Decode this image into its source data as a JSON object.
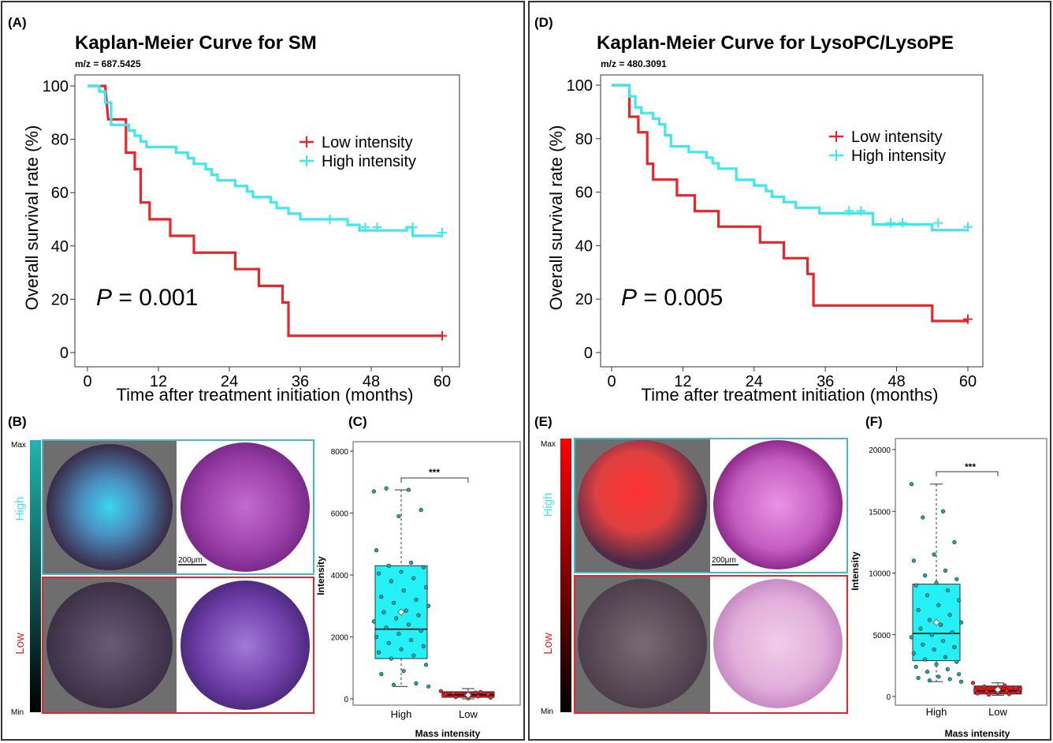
{
  "colors": {
    "low": "#e8262a",
    "high": "#3fe7ef",
    "frame": "#333333",
    "box_high": "#25f0f6",
    "box_low": "#d01818"
  },
  "panels": [
    {
      "id": "A",
      "label": "(A)",
      "title": "Kaplan-Meier Curve for SM",
      "subtitle": "m/z = 687.5425",
      "pvalue_prefix": "P",
      "pvalue_text": " = 0.001",
      "chart_data": {
        "type": "line",
        "title": "Kaplan-Meier Curve for SM",
        "xlabel": "Time after treatment initiation (months)",
        "ylabel": "Overall survival rate (%)",
        "xlim": [
          0,
          60
        ],
        "ylim": [
          0,
          100
        ],
        "xticks": [
          0,
          12,
          24,
          36,
          48,
          60
        ],
        "yticks": [
          0,
          20,
          40,
          60,
          80,
          100
        ],
        "legend_position": "right",
        "series": [
          {
            "name": "Low intensity",
            "color": "low",
            "steps": [
              [
                0,
                100
              ],
              [
                3,
                100
              ],
              [
                3.5,
                87.5
              ],
              [
                6.5,
                87.5
              ],
              [
                6.5,
                75
              ],
              [
                8,
                75
              ],
              [
                8,
                68.8
              ],
              [
                9,
                68.8
              ],
              [
                9,
                56.3
              ],
              [
                10.5,
                56.3
              ],
              [
                10.5,
                50
              ],
              [
                14,
                50
              ],
              [
                14,
                43.8
              ],
              [
                18,
                43.8
              ],
              [
                18,
                37.5
              ],
              [
                25,
                37.5
              ],
              [
                25,
                31.3
              ],
              [
                29,
                31.3
              ],
              [
                29,
                25
              ],
              [
                33,
                25
              ],
              [
                33,
                18.8
              ],
              [
                34,
                18.8
              ],
              [
                34,
                6.3
              ],
              [
                60,
                6.3
              ]
            ],
            "censors": [
              [
                60,
                6.3
              ]
            ]
          },
          {
            "name": "High intensity",
            "color": "high",
            "steps": [
              [
                0,
                100
              ],
              [
                2,
                100
              ],
              [
                2,
                97.9
              ],
              [
                3,
                97.9
              ],
              [
                3,
                93.8
              ],
              [
                4,
                93.8
              ],
              [
                4,
                85.4
              ],
              [
                7,
                85.4
              ],
              [
                7,
                83.3
              ],
              [
                8,
                83.3
              ],
              [
                8,
                81.3
              ],
              [
                9,
                81.3
              ],
              [
                9,
                79.2
              ],
              [
                10,
                79.2
              ],
              [
                10,
                77.1
              ],
              [
                15,
                77.1
              ],
              [
                15,
                75
              ],
              [
                17,
                75
              ],
              [
                17,
                72.9
              ],
              [
                18,
                72.9
              ],
              [
                18,
                70.8
              ],
              [
                20,
                70.8
              ],
              [
                20,
                68.8
              ],
              [
                21,
                68.8
              ],
              [
                21,
                66.7
              ],
              [
                22,
                66.7
              ],
              [
                22,
                64.6
              ],
              [
                25,
                64.6
              ],
              [
                25,
                62.5
              ],
              [
                27,
                62.5
              ],
              [
                27,
                60.4
              ],
              [
                28,
                60.4
              ],
              [
                28,
                58.3
              ],
              [
                31,
                58.3
              ],
              [
                31,
                56.3
              ],
              [
                32,
                56.3
              ],
              [
                32,
                54.2
              ],
              [
                34,
                54.2
              ],
              [
                34,
                52.1
              ],
              [
                36,
                52.1
              ],
              [
                36,
                50
              ],
              [
                38,
                50
              ],
              [
                38,
                50
              ],
              [
                44,
                50
              ],
              [
                44,
                47.9
              ],
              [
                46,
                47.9
              ],
              [
                46,
                45.8
              ],
              [
                54,
                45.8
              ],
              [
                54,
                47
              ],
              [
                55,
                47
              ],
              [
                55,
                43.8
              ],
              [
                60,
                43.8
              ]
            ],
            "censors": [
              [
                41,
                50
              ],
              [
                47,
                47
              ],
              [
                49,
                47
              ],
              [
                55,
                47
              ],
              [
                60,
                45
              ]
            ]
          }
        ]
      }
    },
    {
      "id": "D",
      "label": "(D)",
      "title": "Kaplan-Meier Curve for LysoPC/LysoPE",
      "subtitle": "m/z = 480.3091",
      "pvalue_prefix": "P",
      "pvalue_text": " = 0.005",
      "chart_data": {
        "type": "line",
        "title": "Kaplan-Meier Curve for LysoPC/LysoPE",
        "xlabel": "Time after treatment initiation (months)",
        "ylabel": "Overall survival rate (%)",
        "xlim": [
          0,
          60
        ],
        "ylim": [
          0,
          100
        ],
        "xticks": [
          0,
          12,
          24,
          36,
          48,
          60
        ],
        "yticks": [
          0,
          20,
          40,
          60,
          80,
          100
        ],
        "legend_position": "right",
        "series": [
          {
            "name": "Low intensity",
            "color": "low",
            "steps": [
              [
                0,
                100
              ],
              [
                3,
                100
              ],
              [
                3,
                88.2
              ],
              [
                4.5,
                88.2
              ],
              [
                4.5,
                82.4
              ],
              [
                6,
                82.4
              ],
              [
                6,
                70.6
              ],
              [
                7,
                70.6
              ],
              [
                7,
                64.7
              ],
              [
                11,
                64.7
              ],
              [
                11,
                58.8
              ],
              [
                14,
                58.8
              ],
              [
                14,
                52.9
              ],
              [
                18,
                52.9
              ],
              [
                18,
                47.1
              ],
              [
                25,
                47.1
              ],
              [
                25,
                41.2
              ],
              [
                29,
                41.2
              ],
              [
                29,
                35.3
              ],
              [
                33,
                35.3
              ],
              [
                33,
                29.4
              ],
              [
                34,
                29.4
              ],
              [
                34,
                17.6
              ],
              [
                54,
                17.6
              ],
              [
                54,
                11.8
              ],
              [
                60,
                11.8
              ]
            ],
            "censors": [
              [
                60,
                12.5
              ]
            ]
          },
          {
            "name": "High intensity",
            "color": "high",
            "steps": [
              [
                0,
                100
              ],
              [
                3,
                100
              ],
              [
                3,
                95.8
              ],
              [
                4,
                95.8
              ],
              [
                4,
                91.7
              ],
              [
                5,
                91.7
              ],
              [
                5,
                89.6
              ],
              [
                7,
                89.6
              ],
              [
                7,
                87.5
              ],
              [
                8,
                87.5
              ],
              [
                8,
                85.4
              ],
              [
                9,
                85.4
              ],
              [
                9,
                81.3
              ],
              [
                10,
                81.3
              ],
              [
                10,
                77.1
              ],
              [
                13,
                77.1
              ],
              [
                13,
                75
              ],
              [
                16,
                75
              ],
              [
                16,
                72.9
              ],
              [
                17,
                72.9
              ],
              [
                17,
                70.8
              ],
              [
                18,
                70.8
              ],
              [
                18,
                68.8
              ],
              [
                21,
                68.8
              ],
              [
                21,
                64.6
              ],
              [
                24,
                64.6
              ],
              [
                24,
                62.5
              ],
              [
                26,
                62.5
              ],
              [
                26,
                60.4
              ],
              [
                27,
                60.4
              ],
              [
                27,
                58.3
              ],
              [
                29,
                58.3
              ],
              [
                29,
                56.3
              ],
              [
                31,
                56.3
              ],
              [
                31,
                54.2
              ],
              [
                35,
                54.2
              ],
              [
                35,
                52.1
              ],
              [
                44,
                52.1
              ],
              [
                44,
                47.9
              ],
              [
                54,
                47.9
              ],
              [
                54,
                45.8
              ],
              [
                60,
                45.8
              ]
            ],
            "censors": [
              [
                40,
                53
              ],
              [
                42,
                53
              ],
              [
                47,
                48.5
              ],
              [
                49,
                48.5
              ],
              [
                55,
                48.5
              ],
              [
                60,
                47
              ]
            ]
          }
        ]
      }
    }
  ],
  "image_panels": [
    {
      "id": "B",
      "label": "(B)",
      "bar_max": "Max",
      "bar_min": "Min",
      "row_high": "High",
      "row_low": "Low",
      "scale_bar": "200μm"
    },
    {
      "id": "E",
      "label": "(E)",
      "bar_max": "Max",
      "bar_min": "Min",
      "row_high": "High",
      "row_low": "Low",
      "scale_bar": "200μm"
    }
  ],
  "box_panels": [
    {
      "id": "C",
      "label": "(C)",
      "significance": "***",
      "chart_data": {
        "type": "box",
        "xlabel": "Mass intensity",
        "ylabel": "Intensity",
        "categories": [
          "High",
          "Low"
        ],
        "ylim": [
          0,
          8000
        ],
        "yticks": [
          0,
          2000,
          4000,
          6000,
          8000
        ],
        "boxes": [
          {
            "name": "High",
            "min": 400,
            "q1": 1300,
            "median": 2250,
            "q3": 4300,
            "max": 6750,
            "mean": 2800,
            "points": [
              6700,
              6750,
              6800,
              6100,
              5900,
              4800,
              4400,
              4300,
              4250,
              4100,
              4050,
              3900,
              3800,
              3600,
              3500,
              3300,
              3200,
              3100,
              3000,
              2850,
              2800,
              2700,
              2600,
              2500,
              2400,
              2300,
              2200,
              2100,
              2000,
              1900,
              1800,
              1700,
              1600,
              1500,
              1400,
              1300,
              1100,
              900,
              800,
              500,
              450,
              400
            ]
          },
          {
            "name": "Low",
            "min": 0,
            "q1": 50,
            "median": 130,
            "q3": 230,
            "max": 330,
            "mean": 120,
            "points": [
              250,
              200,
              180,
              150,
              130,
              100,
              80,
              60,
              40,
              20,
              160,
              220
            ]
          }
        ]
      }
    },
    {
      "id": "F",
      "label": "(F)",
      "significance": "***",
      "chart_data": {
        "type": "box",
        "xlabel": "Mass intensity",
        "ylabel": "Intensity",
        "categories": [
          "High",
          "Low"
        ],
        "ylim": [
          0,
          20000
        ],
        "yticks": [
          0,
          5000,
          10000,
          15000,
          20000
        ],
        "boxes": [
          {
            "name": "High",
            "min": 1200,
            "q1": 2900,
            "median": 5100,
            "q3": 9100,
            "max": 17200,
            "mean": 6000,
            "points": [
              17200,
              15000,
              14500,
              12500,
              11500,
              11000,
              10200,
              9800,
              9500,
              9200,
              9000,
              8600,
              8200,
              7800,
              7400,
              7000,
              6600,
              6200,
              6000,
              5800,
              5500,
              5200,
              5000,
              4800,
              4500,
              4200,
              4000,
              3800,
              3500,
              3200,
              3000,
              2800,
              2600,
              2400,
              2200,
              2000,
              1800,
              1600,
              1500,
              1400,
              1300,
              1200
            ]
          },
          {
            "name": "Low",
            "min": 100,
            "q1": 200,
            "median": 450,
            "q3": 850,
            "max": 1100,
            "mean": 550,
            "points": [
              1100,
              900,
              800,
              700,
              600,
              500,
              450,
              400,
              350,
              300,
              250,
              200,
              150,
              600,
              750
            ]
          }
        ]
      }
    }
  ]
}
